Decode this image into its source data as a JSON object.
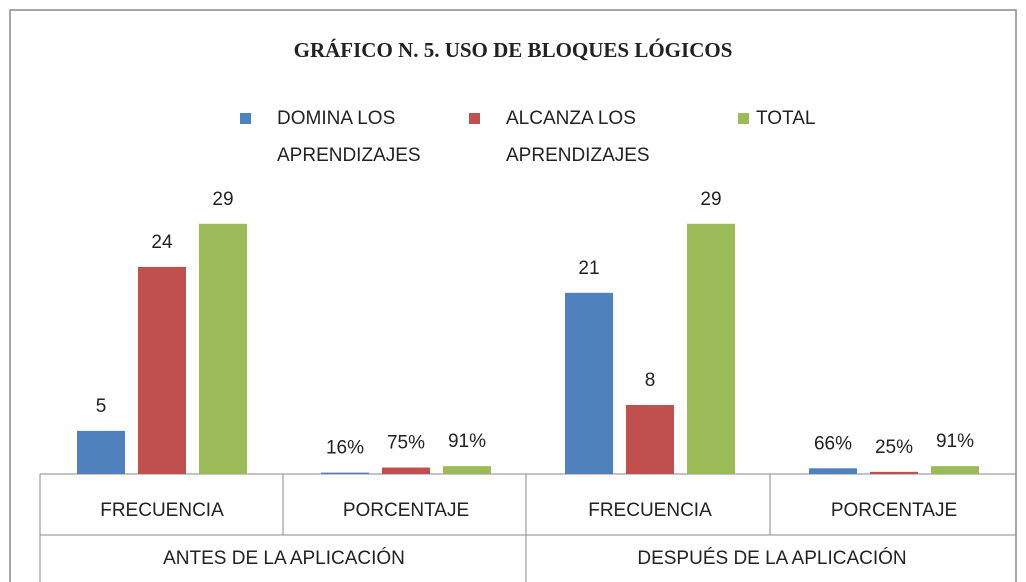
{
  "chart_data": {
    "type": "bar",
    "title": "GRÁFICO N. 5. USO DE BLOQUES LÓGICOS",
    "categories": [
      "FRECUENCIA",
      "PORCENTAJE",
      "FRECUENCIA",
      "PORCENTAJE"
    ],
    "group_labels": [
      "ANTES DE LA APLICACIÓN",
      "DESPUÉS DE LA APLICACIÓN"
    ],
    "series": [
      {
        "name": "DOMINA LOS APRENDIZAJES",
        "color": "#4f81bd",
        "values": [
          5,
          0.16,
          21,
          0.66
        ],
        "value_labels": [
          "5",
          "16%",
          "21",
          "66%"
        ]
      },
      {
        "name": "ALCANZA LOS APRENDIZAJES",
        "color": "#c0504d",
        "values": [
          24,
          0.75,
          8,
          0.25
        ],
        "value_labels": [
          "24",
          "75%",
          "8",
          "25%"
        ]
      },
      {
        "name": "TOTAL",
        "color": "#9bbb59",
        "values": [
          29,
          0.91,
          29,
          0.91
        ],
        "value_labels": [
          "29",
          "91%",
          "29",
          "91%"
        ]
      }
    ],
    "ylim": [
      0,
      35
    ]
  }
}
